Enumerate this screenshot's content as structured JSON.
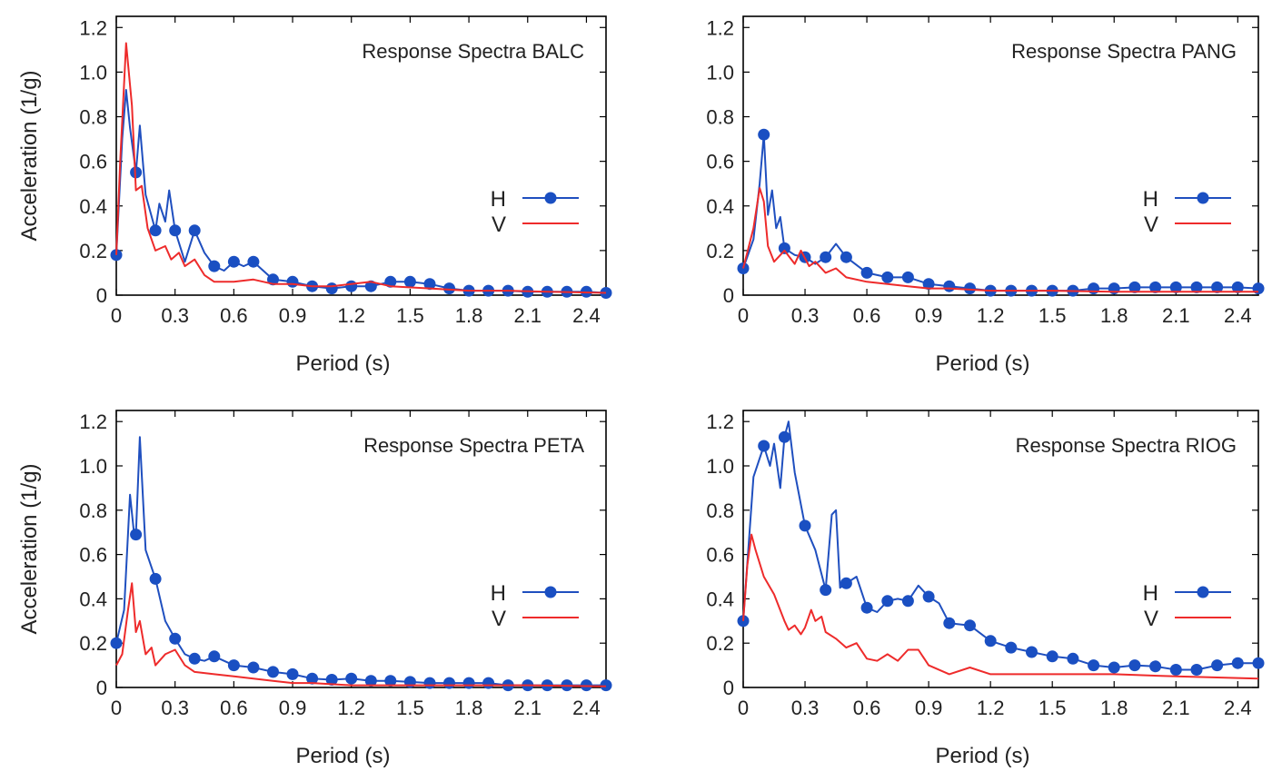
{
  "colors": {
    "H": "#1f4fbf",
    "V": "#ee2b2b",
    "axis": "#000000"
  },
  "chart_data": [
    {
      "type": "line",
      "title": "Response Spectra BALC",
      "xlabel": "Period (s)",
      "ylabel": "Acceleration (1/g)",
      "xlim": [
        0,
        2.5
      ],
      "ylim": [
        0,
        1.25
      ],
      "xticks": [
        0,
        0.3,
        0.6,
        0.9,
        1.2,
        1.5,
        1.8,
        2.1,
        2.4
      ],
      "xtick_labels": [
        "0",
        "0.3",
        "0.6",
        "0.9",
        "1.2",
        "1.5",
        "1.8",
        "2.1",
        "2.4"
      ],
      "yticks": [
        0,
        0.2,
        0.4,
        0.6,
        0.8,
        1.0,
        1.2
      ],
      "ytick_labels": [
        "0",
        "0.2",
        "0.4",
        "0.6",
        "0.8",
        "1.0",
        "1.2"
      ],
      "legend": {
        "placement": "right",
        "entries": [
          "H",
          "V"
        ]
      },
      "series": [
        {
          "name": "H",
          "x": [
            0,
            0.03,
            0.05,
            0.07,
            0.1,
            0.12,
            0.15,
            0.2,
            0.22,
            0.25,
            0.27,
            0.3,
            0.35,
            0.4,
            0.45,
            0.5,
            0.55,
            0.6,
            0.65,
            0.7,
            0.8,
            0.9,
            1.0,
            1.1,
            1.2,
            1.3,
            1.4,
            1.5,
            1.6,
            1.7,
            1.8,
            1.9,
            2.0,
            2.1,
            2.2,
            2.3,
            2.4,
            2.5
          ],
          "y": [
            0.18,
            0.7,
            0.92,
            0.75,
            0.55,
            0.76,
            0.45,
            0.29,
            0.41,
            0.33,
            0.47,
            0.29,
            0.15,
            0.29,
            0.19,
            0.13,
            0.11,
            0.15,
            0.13,
            0.15,
            0.07,
            0.06,
            0.04,
            0.03,
            0.04,
            0.04,
            0.06,
            0.06,
            0.05,
            0.03,
            0.02,
            0.02,
            0.02,
            0.015,
            0.015,
            0.015,
            0.015,
            0.01
          ],
          "markers_at": [
            0,
            0.1,
            0.2,
            0.3,
            0.4,
            0.5,
            0.6,
            0.7,
            0.8,
            0.9,
            1.0,
            1.1,
            1.2,
            1.3,
            1.4,
            1.5,
            1.6,
            1.7,
            1.8,
            1.9,
            2.0,
            2.1,
            2.2,
            2.3,
            2.4,
            2.5
          ]
        },
        {
          "name": "V",
          "x": [
            0,
            0.02,
            0.05,
            0.08,
            0.1,
            0.13,
            0.16,
            0.2,
            0.25,
            0.28,
            0.32,
            0.35,
            0.4,
            0.45,
            0.5,
            0.6,
            0.7,
            0.8,
            0.9,
            1.0,
            1.1,
            1.2,
            1.3,
            1.4,
            1.6,
            1.8,
            2.0,
            2.2,
            2.5
          ],
          "y": [
            0.18,
            0.6,
            1.13,
            0.85,
            0.47,
            0.49,
            0.3,
            0.2,
            0.22,
            0.16,
            0.19,
            0.13,
            0.16,
            0.09,
            0.06,
            0.06,
            0.07,
            0.05,
            0.05,
            0.04,
            0.04,
            0.05,
            0.06,
            0.04,
            0.03,
            0.02,
            0.02,
            0.015,
            0.01
          ]
        }
      ]
    },
    {
      "type": "line",
      "title": "Response Spectra PANG",
      "xlabel": "Period (s)",
      "ylabel": "",
      "xlim": [
        0,
        2.5
      ],
      "ylim": [
        0,
        1.25
      ],
      "xticks": [
        0,
        0.3,
        0.6,
        0.9,
        1.2,
        1.5,
        1.8,
        2.1,
        2.4
      ],
      "xtick_labels": [
        "0",
        "0.3",
        "0.6",
        "0.9",
        "1.2",
        "1.5",
        "1.8",
        "2.1",
        "2.4"
      ],
      "yticks": [
        0,
        0.2,
        0.4,
        0.6,
        0.8,
        1.0,
        1.2
      ],
      "ytick_labels": [
        "0",
        "0.2",
        "0.4",
        "0.6",
        "0.8",
        "1.0",
        "1.2"
      ],
      "legend": {
        "placement": "right",
        "entries": [
          "H",
          "V"
        ]
      },
      "series": [
        {
          "name": "H",
          "x": [
            0,
            0.05,
            0.08,
            0.1,
            0.12,
            0.14,
            0.16,
            0.18,
            0.2,
            0.25,
            0.3,
            0.35,
            0.4,
            0.45,
            0.5,
            0.6,
            0.7,
            0.8,
            0.9,
            1.0,
            1.1,
            1.2,
            1.3,
            1.4,
            1.5,
            1.6,
            1.7,
            1.8,
            1.9,
            2.0,
            2.1,
            2.2,
            2.3,
            2.4,
            2.5
          ],
          "y": [
            0.12,
            0.25,
            0.5,
            0.72,
            0.36,
            0.47,
            0.3,
            0.35,
            0.21,
            0.18,
            0.17,
            0.14,
            0.17,
            0.23,
            0.17,
            0.1,
            0.08,
            0.08,
            0.05,
            0.04,
            0.03,
            0.02,
            0.02,
            0.02,
            0.02,
            0.02,
            0.03,
            0.03,
            0.035,
            0.035,
            0.035,
            0.035,
            0.035,
            0.035,
            0.03
          ],
          "markers_at": [
            0,
            0.1,
            0.2,
            0.3,
            0.4,
            0.5,
            0.6,
            0.7,
            0.8,
            0.9,
            1.0,
            1.1,
            1.2,
            1.3,
            1.4,
            1.5,
            1.6,
            1.7,
            1.8,
            1.9,
            2.0,
            2.1,
            2.2,
            2.3,
            2.4,
            2.5
          ]
        },
        {
          "name": "V",
          "x": [
            0,
            0.05,
            0.08,
            0.1,
            0.12,
            0.15,
            0.2,
            0.25,
            0.28,
            0.32,
            0.35,
            0.4,
            0.45,
            0.5,
            0.6,
            0.7,
            0.8,
            0.9,
            1.0,
            1.2,
            1.5,
            1.8,
            2.1,
            2.5
          ],
          "y": [
            0.12,
            0.3,
            0.48,
            0.42,
            0.22,
            0.15,
            0.2,
            0.14,
            0.2,
            0.13,
            0.15,
            0.1,
            0.12,
            0.08,
            0.06,
            0.05,
            0.04,
            0.03,
            0.03,
            0.02,
            0.02,
            0.015,
            0.015,
            0.015
          ]
        }
      ]
    },
    {
      "type": "line",
      "title": "Response Spectra PETA",
      "xlabel": "Period (s)",
      "ylabel": "Acceleration (1/g)",
      "xlim": [
        0,
        2.5
      ],
      "ylim": [
        0,
        1.25
      ],
      "xticks": [
        0,
        0.3,
        0.6,
        0.9,
        1.2,
        1.5,
        1.8,
        2.1,
        2.4
      ],
      "xtick_labels": [
        "0",
        "0.3",
        "0.6",
        "0.9",
        "1.2",
        "1.5",
        "1.8",
        "2.1",
        "2.4"
      ],
      "yticks": [
        0,
        0.2,
        0.4,
        0.6,
        0.8,
        1.0,
        1.2
      ],
      "ytick_labels": [
        "0",
        "0.2",
        "0.4",
        "0.6",
        "0.8",
        "1.0",
        "1.2"
      ],
      "legend": {
        "placement": "right",
        "entries": [
          "H",
          "V"
        ]
      },
      "series": [
        {
          "name": "H",
          "x": [
            0,
            0.04,
            0.07,
            0.09,
            0.1,
            0.12,
            0.15,
            0.2,
            0.25,
            0.3,
            0.35,
            0.4,
            0.45,
            0.5,
            0.55,
            0.6,
            0.7,
            0.8,
            0.9,
            1.0,
            1.1,
            1.2,
            1.3,
            1.4,
            1.5,
            1.6,
            1.7,
            1.8,
            1.9,
            2.0,
            2.1,
            2.2,
            2.3,
            2.4,
            2.5
          ],
          "y": [
            0.2,
            0.35,
            0.87,
            0.7,
            0.69,
            1.13,
            0.62,
            0.49,
            0.3,
            0.22,
            0.15,
            0.13,
            0.12,
            0.14,
            0.12,
            0.1,
            0.09,
            0.07,
            0.06,
            0.04,
            0.035,
            0.04,
            0.03,
            0.03,
            0.025,
            0.02,
            0.02,
            0.02,
            0.02,
            0.01,
            0.01,
            0.01,
            0.01,
            0.01,
            0.01
          ],
          "markers_at": [
            0,
            0.1,
            0.2,
            0.3,
            0.4,
            0.5,
            0.6,
            0.7,
            0.8,
            0.9,
            1.0,
            1.1,
            1.2,
            1.3,
            1.4,
            1.5,
            1.6,
            1.7,
            1.8,
            1.9,
            2.0,
            2.1,
            2.2,
            2.3,
            2.4,
            2.5
          ]
        },
        {
          "name": "V",
          "x": [
            0,
            0.03,
            0.06,
            0.08,
            0.1,
            0.12,
            0.15,
            0.18,
            0.2,
            0.25,
            0.3,
            0.35,
            0.4,
            0.5,
            0.6,
            0.7,
            0.8,
            0.9,
            1.0,
            1.2,
            1.5,
            1.8,
            2.1,
            2.5
          ],
          "y": [
            0.1,
            0.15,
            0.35,
            0.47,
            0.25,
            0.3,
            0.15,
            0.18,
            0.1,
            0.15,
            0.17,
            0.1,
            0.07,
            0.06,
            0.05,
            0.04,
            0.03,
            0.02,
            0.02,
            0.01,
            0.01,
            0.01,
            0.01,
            0.005
          ]
        }
      ]
    },
    {
      "type": "line",
      "title": "Response Spectra RIOG",
      "xlabel": "Period (s)",
      "ylabel": "",
      "xlim": [
        0,
        2.5
      ],
      "ylim": [
        0,
        1.25
      ],
      "xticks": [
        0,
        0.3,
        0.6,
        0.9,
        1.2,
        1.5,
        1.8,
        2.1,
        2.4
      ],
      "xtick_labels": [
        "0",
        "0.3",
        "0.6",
        "0.9",
        "1.2",
        "1.5",
        "1.8",
        "2.1",
        "2.4"
      ],
      "yticks": [
        0,
        0.2,
        0.4,
        0.6,
        0.8,
        1.0,
        1.2
      ],
      "ytick_labels": [
        "0",
        "0.2",
        "0.4",
        "0.6",
        "0.8",
        "1.0",
        "1.2"
      ],
      "legend": {
        "placement": "right",
        "entries": [
          "H",
          "V"
        ]
      },
      "series": [
        {
          "name": "H",
          "x": [
            0,
            0.05,
            0.1,
            0.13,
            0.15,
            0.18,
            0.2,
            0.22,
            0.25,
            0.3,
            0.35,
            0.4,
            0.43,
            0.45,
            0.47,
            0.5,
            0.55,
            0.6,
            0.65,
            0.7,
            0.75,
            0.8,
            0.85,
            0.9,
            0.95,
            1.0,
            1.1,
            1.2,
            1.3,
            1.4,
            1.5,
            1.6,
            1.7,
            1.8,
            1.9,
            2.0,
            2.1,
            2.2,
            2.3,
            2.4,
            2.5
          ],
          "y": [
            0.3,
            0.95,
            1.09,
            1.0,
            1.1,
            0.9,
            1.13,
            1.2,
            0.97,
            0.73,
            0.62,
            0.44,
            0.78,
            0.8,
            0.45,
            0.47,
            0.5,
            0.36,
            0.34,
            0.39,
            0.4,
            0.39,
            0.46,
            0.41,
            0.38,
            0.29,
            0.28,
            0.21,
            0.18,
            0.16,
            0.14,
            0.13,
            0.1,
            0.09,
            0.1,
            0.095,
            0.08,
            0.08,
            0.1,
            0.11,
            0.11
          ],
          "markers_at": [
            0,
            0.1,
            0.2,
            0.3,
            0.4,
            0.5,
            0.6,
            0.7,
            0.8,
            0.9,
            1.0,
            1.1,
            1.2,
            1.3,
            1.4,
            1.5,
            1.6,
            1.7,
            1.8,
            1.9,
            2.0,
            2.1,
            2.2,
            2.3,
            2.4,
            2.5
          ]
        },
        {
          "name": "V",
          "x": [
            0,
            0.02,
            0.04,
            0.06,
            0.1,
            0.15,
            0.2,
            0.22,
            0.25,
            0.28,
            0.3,
            0.33,
            0.35,
            0.38,
            0.4,
            0.45,
            0.5,
            0.55,
            0.6,
            0.65,
            0.7,
            0.75,
            0.8,
            0.85,
            0.9,
            1.0,
            1.1,
            1.2,
            1.5,
            1.8,
            2.1,
            2.5
          ],
          "y": [
            0.3,
            0.55,
            0.69,
            0.62,
            0.5,
            0.42,
            0.3,
            0.26,
            0.28,
            0.24,
            0.27,
            0.35,
            0.3,
            0.32,
            0.25,
            0.22,
            0.18,
            0.2,
            0.13,
            0.12,
            0.15,
            0.12,
            0.17,
            0.17,
            0.1,
            0.06,
            0.09,
            0.06,
            0.06,
            0.06,
            0.05,
            0.04
          ]
        }
      ]
    }
  ]
}
